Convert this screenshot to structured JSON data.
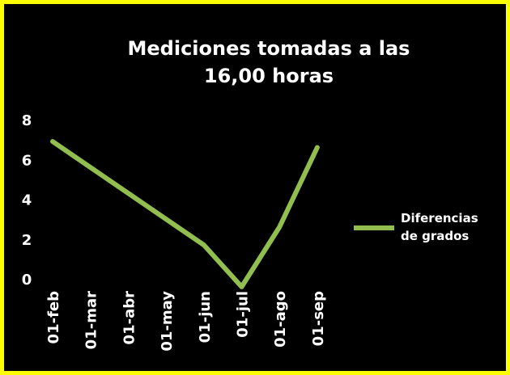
{
  "chart_data": {
    "type": "line",
    "title": "Mediciones tomadas a las 16,00 horas",
    "categories": [
      "01-feb",
      "01-mar",
      "01-abr",
      "01-may",
      "01-jun",
      "01-jul",
      "01-ago",
      "01-sep"
    ],
    "series": [
      {
        "name": "Diferencias de grados",
        "color": "#92bd4f",
        "values": [
          6.9,
          5.6,
          4.3,
          3.0,
          1.7,
          -0.4,
          2.6,
          6.6
        ]
      }
    ],
    "ylim": [
      0,
      8
    ],
    "yticks": [
      0,
      2,
      4,
      6,
      8
    ],
    "grid": false,
    "legend": "right"
  }
}
